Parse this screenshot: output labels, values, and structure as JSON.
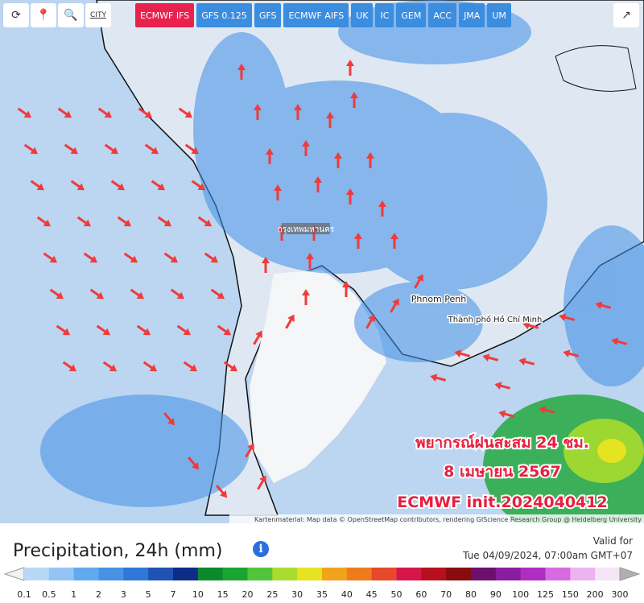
{
  "toolbar": {
    "city": "CITY",
    "models": [
      "ECMWF IFS",
      "GFS 0.125",
      "GFS",
      "ECMWF AIFS",
      "UK",
      "IC",
      "GEM",
      "ACC",
      "JMA",
      "UM"
    ],
    "active": "ECMWF IFS"
  },
  "map": {
    "overlay": [
      "พยากรณ์ฝนสะสม 24 ชม.",
      "8 เมษายน 2567",
      "ECMWF init.2024040412"
    ],
    "places": [
      "กรุงเทพมหานคร",
      "Phnom Penh",
      "Thành phố Hồ Chí Minh"
    ],
    "attribution": "Kartenmaterial: Map data © OpenStreetMap contributors, rendering GIScience Research Group @ Heidelberg University"
  },
  "legend": {
    "title": "Precipitation, 24h (mm)",
    "valid_label": "Valid for",
    "valid_time": "Tue 04/09/2024, 07:00am GMT+07",
    "labels": [
      "0.1",
      "0.5",
      "1",
      "2",
      "3",
      "5",
      "7",
      "10",
      "15",
      "20",
      "25",
      "30",
      "35",
      "40",
      "45",
      "50",
      "60",
      "70",
      "80",
      "90",
      "100",
      "125",
      "150",
      "200",
      "300"
    ],
    "colors": [
      "#b9d8f6",
      "#93c4f3",
      "#63a9ee",
      "#4792e5",
      "#2f77d8",
      "#1f53b3",
      "#0e2b86",
      "#0b8a2c",
      "#1aa533",
      "#52c43c",
      "#a8dc2e",
      "#e6e320",
      "#f0a31b",
      "#ef7b1d",
      "#e6492b",
      "#d6164b",
      "#b5101d",
      "#880c0d",
      "#6d106d",
      "#8a1da1",
      "#af2dc1",
      "#d66be0",
      "#edb2f0",
      "#f6e4f7"
    ]
  }
}
